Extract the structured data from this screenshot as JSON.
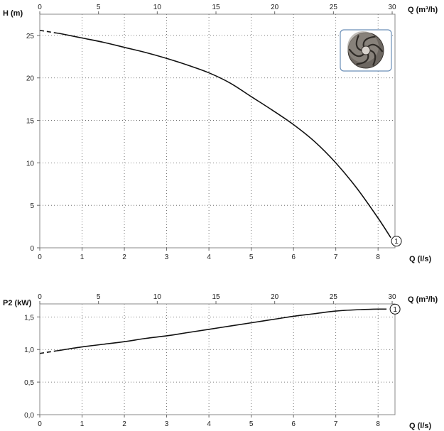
{
  "chart_data": [
    {
      "type": "line",
      "name": "head-chart",
      "ylabel": "H (m)",
      "xlabel_bottom": "Q (l/s)",
      "xlabel_top": "Q (m³/h)",
      "xlim": [
        0,
        8.4
      ],
      "ylim": [
        0,
        27.5
      ],
      "x_ticks": [
        0,
        1,
        2,
        3,
        4,
        5,
        6,
        7,
        8
      ],
      "y_ticks": [
        0,
        5,
        10,
        15,
        20,
        25
      ],
      "y_tick_labels": [
        "0",
        "5",
        "10",
        "15",
        "20",
        "25"
      ],
      "x_top_ticks": [
        0,
        5,
        10,
        15,
        20,
        25,
        30
      ],
      "x_top_scale": 3.6,
      "grid": true,
      "has_impeller_image": true,
      "series": [
        {
          "marker": "1",
          "x": [
            0,
            0.5,
            1,
            1.5,
            2,
            2.5,
            3,
            3.5,
            4,
            4.5,
            5,
            5.5,
            6,
            6.5,
            7,
            7.5,
            8,
            8.3
          ],
          "y": [
            25.6,
            25.2,
            24.7,
            24.2,
            23.6,
            23.0,
            22.3,
            21.5,
            20.6,
            19.4,
            17.8,
            16.2,
            14.5,
            12.5,
            10.0,
            7.0,
            3.5,
            1.2
          ],
          "dashed_until": 0.4
        }
      ]
    },
    {
      "type": "line",
      "name": "power-chart",
      "ylabel": "P2 (kW)",
      "xlabel_bottom": "Q (l/s)",
      "xlabel_top": "Q (m³/h)",
      "xlim": [
        0,
        8.4
      ],
      "ylim": [
        0,
        1.7
      ],
      "x_ticks": [
        0,
        1,
        2,
        3,
        4,
        5,
        6,
        7,
        8
      ],
      "y_ticks": [
        0,
        0.5,
        1,
        1.5
      ],
      "y_tick_labels": [
        "0,0",
        "0,5",
        "1,0",
        "1,5"
      ],
      "x_top_ticks": [
        0,
        5,
        10,
        15,
        20,
        25,
        30
      ],
      "x_top_scale": 3.6,
      "grid": true,
      "series": [
        {
          "marker": "1",
          "x": [
            0,
            0.5,
            1,
            1.5,
            2,
            2.5,
            3,
            3.5,
            4,
            4.5,
            5,
            5.5,
            6,
            6.5,
            7,
            7.5,
            8,
            8.2
          ],
          "y": [
            0.94,
            0.99,
            1.04,
            1.08,
            1.12,
            1.17,
            1.21,
            1.26,
            1.31,
            1.36,
            1.41,
            1.46,
            1.51,
            1.55,
            1.59,
            1.61,
            1.62,
            1.62
          ],
          "dashed_until": 0.4
        }
      ]
    }
  ]
}
